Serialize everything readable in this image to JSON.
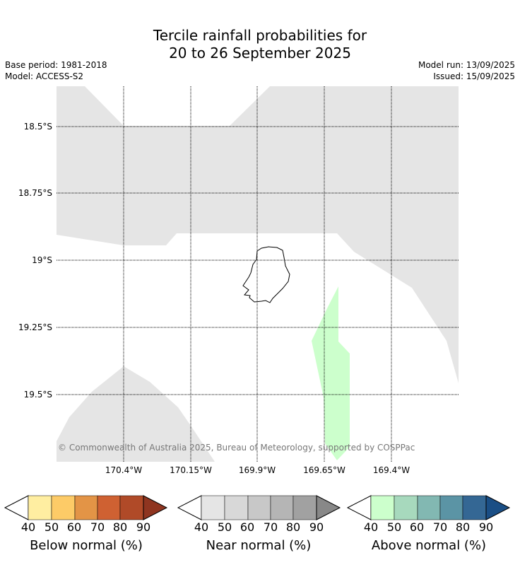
{
  "title": {
    "line1": "Tercile rainfall probabilities for",
    "line2": "20 to 26 September 2025"
  },
  "meta": {
    "base_period": "Base period: 1981-2018",
    "model": "Model: ACCESS-S2",
    "model_run": "Model run: 13/09/2025",
    "issued": "Issued: 15/09/2025"
  },
  "map": {
    "lat_labels": [
      "18.5°S",
      "18.75°S",
      "19°S",
      "19.25°S",
      "19.5°S"
    ],
    "lon_labels": [
      "170.4°W",
      "170.15°W",
      "169.9°W",
      "169.65°W",
      "169.4°W"
    ],
    "copyright": "© Commonwealth of Australia 2025, Bureau of Meteorology, supported by COSPPac",
    "colors": {
      "near_normal_40": "#e5e5e5",
      "above_normal_40": "#ccffcc",
      "island_outline": "#000000"
    }
  },
  "colorbars": [
    {
      "label": "Below normal (%)",
      "ticks": [
        "40",
        "50",
        "60",
        "70",
        "80",
        "90"
      ],
      "colors": [
        "#ffeea1",
        "#fdcb67",
        "#e39446",
        "#cf6132",
        "#b04a28",
        "#8f3520"
      ]
    },
    {
      "label": "Near normal (%)",
      "ticks": [
        "40",
        "50",
        "60",
        "70",
        "80",
        "90"
      ],
      "colors": [
        "#e5e5e5",
        "#d8d8d8",
        "#c8c8c8",
        "#b5b5b5",
        "#a1a1a1",
        "#888888"
      ]
    },
    {
      "label": "Above normal (%)",
      "ticks": [
        "40",
        "50",
        "60",
        "70",
        "80",
        "90"
      ],
      "colors": [
        "#ccffcc",
        "#a7d9bd",
        "#82b8b2",
        "#5b94a5",
        "#346794",
        "#1a4e85"
      ]
    }
  ]
}
